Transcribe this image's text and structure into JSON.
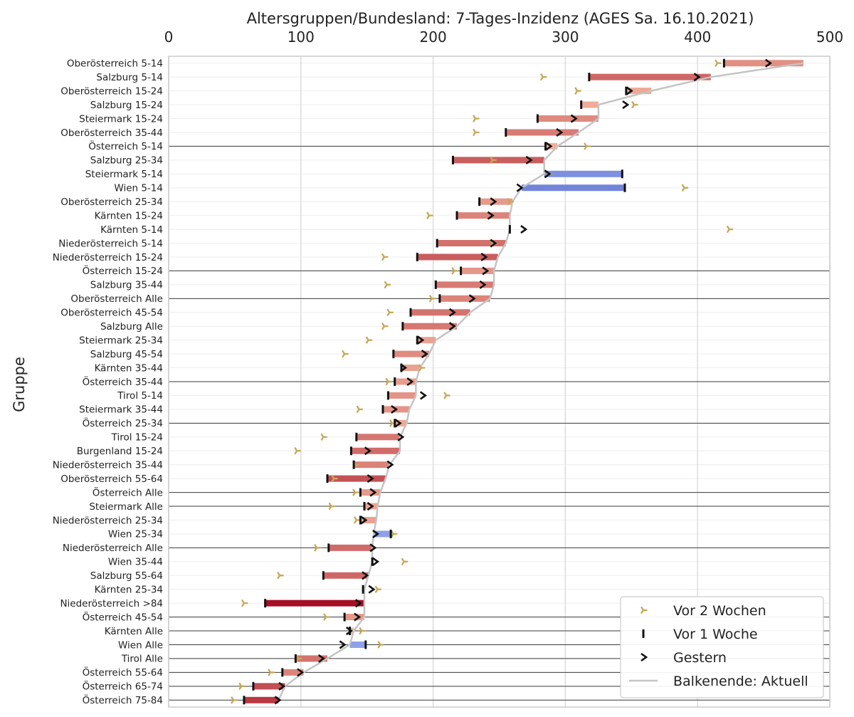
{
  "chart_data": {
    "type": "bar",
    "title": "Altersgruppen/Bundesland: 7-Tages-Inzidenz (AGES Sa. 16.10.2021)",
    "ylabel": "Gruppe",
    "xlabel": "",
    "xlim": [
      0,
      500
    ],
    "xticks": [
      0,
      100,
      200,
      300,
      400,
      500
    ],
    "x_axis_position": "top",
    "grid": true,
    "legend_position": "bottom-right",
    "legend": [
      {
        "label": "Vor 2 Wochen",
        "marker": "tri-right"
      },
      {
        "label": "Vor 1 Woche",
        "marker": "vline"
      },
      {
        "label": "Gestern",
        "marker": "caret-right"
      },
      {
        "label": "Balkenende: Aktuell",
        "marker": "line"
      }
    ],
    "colors": {
      "vor2wochen": "#c8a95a",
      "marker": "#111111",
      "trend_line": "#c4c4c4",
      "grid": "#dcdcdc",
      "increase_strong": "#a50f26",
      "increase_light": "#f4b8a0",
      "decrease_strong": "#2b3fb5",
      "decrease_light": "#9db0f0"
    },
    "categories": [
      "Oberösterreich 5-14",
      "Salzburg 5-14",
      "Oberösterreich 15-24",
      "Salzburg 15-24",
      "Steiermark 15-24",
      "Oberösterreich 35-44",
      "Österreich 5-14",
      "Salzburg 25-34",
      "Steiermark 5-14",
      "Wien 5-14",
      "Oberösterreich 25-34",
      "Kärnten 15-24",
      "Kärnten 5-14",
      "Niederösterreich 5-14",
      "Niederösterreich 15-24",
      "Österreich 15-24",
      "Salzburg 35-44",
      "Oberösterreich Alle",
      "Oberösterreich 45-54",
      "Salzburg Alle",
      "Steiermark 25-34",
      "Salzburg 45-54",
      "Kärnten 35-44",
      "Österreich 35-44",
      "Tirol 5-14",
      "Steiermark 35-44",
      "Österreich 25-34",
      "Tirol 15-24",
      "Burgenland 15-24",
      "Niederösterreich 35-44",
      "Oberösterreich 55-64",
      "Österreich Alle",
      "Steiermark Alle",
      "Niederösterreich 25-34",
      "Wien 25-34",
      "Niederösterreich Alle",
      "Wien 35-44",
      "Salzburg 55-64",
      "Kärnten 25-34",
      "Niederösterreich >84",
      "Österreich 45-54",
      "Kärnten Alle",
      "Wien Alle",
      "Tirol Alle",
      "Österreich 55-64",
      "Österreich 65-74",
      "Österreich 75-84"
    ],
    "series": [
      {
        "name": "Aktuell",
        "values": [
          480,
          410,
          365,
          325,
          325,
          310,
          294,
          284,
          284,
          267,
          260,
          258,
          258,
          255,
          249,
          246,
          246,
          243,
          228,
          218,
          202,
          197,
          190,
          187,
          187,
          182,
          180,
          175,
          175,
          167,
          164,
          160,
          158,
          157,
          155,
          154,
          154,
          151,
          148,
          148,
          148,
          140,
          137,
          120,
          102,
          88,
          83
        ]
      },
      {
        "name": "Vor 1 Woche",
        "values": [
          420,
          318,
          346,
          312,
          279,
          255,
          285,
          215,
          343,
          345,
          235,
          218,
          258,
          203,
          188,
          221,
          202,
          205,
          183,
          177,
          188,
          170,
          176,
          171,
          166,
          162,
          171,
          142,
          138,
          140,
          120,
          145,
          148,
          145,
          168,
          121,
          154,
          117,
          147,
          73,
          133,
          137,
          149,
          96,
          86,
          64,
          57
        ]
      },
      {
        "name": "Gestern",
        "values": [
          453,
          399,
          348,
          345,
          306,
          295,
          287,
          272,
          286,
          265,
          245,
          243,
          268,
          245,
          238,
          239,
          237,
          229,
          214,
          214,
          190,
          193,
          177,
          182,
          192,
          170,
          173,
          175,
          150,
          167,
          152,
          154,
          152,
          147,
          156,
          154,
          156,
          148,
          153,
          143,
          142,
          136,
          131,
          115,
          99,
          85,
          82
        ]
      },
      {
        "name": "Vor 2 Wochen",
        "values": [
          415,
          283,
          309,
          352,
          232,
          232,
          316,
          245,
          287,
          390,
          258,
          197,
          424,
          245,
          163,
          216,
          165,
          199,
          167,
          163,
          151,
          133,
          191,
          166,
          210,
          144,
          169,
          117,
          97,
          141,
          125,
          141,
          123,
          142,
          170,
          112,
          178,
          84,
          158,
          57,
          119,
          146,
          160,
          98,
          77,
          55,
          49
        ]
      }
    ],
    "dark_separator_rows": [
      "Österreich 5-14",
      "Österreich 15-24",
      "Oberösterreich Alle",
      "Österreich 35-44",
      "Österreich 25-34",
      "Österreich Alle",
      "Steiermark Alle",
      "Niederösterreich Alle",
      "Österreich 45-54",
      "Kärnten Alle",
      "Wien Alle",
      "Tirol Alle",
      "Österreich 55-64",
      "Österreich 65-74",
      "Österreich 75-84"
    ]
  }
}
